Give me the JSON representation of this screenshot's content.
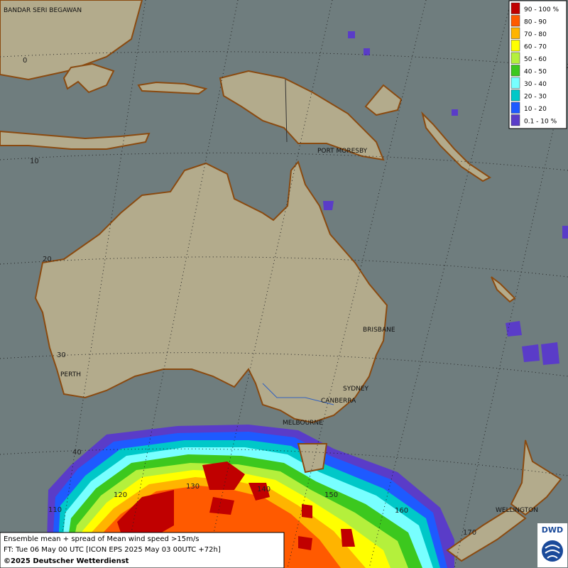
{
  "map": {
    "cities": [
      "BANDAR SERI BEGAWAN",
      "PORT MORESBY",
      "BRISBANE",
      "PERTH",
      "SYDNEY",
      "CANBERRA",
      "MELBOURNE",
      "WELLINGTON"
    ],
    "latitude_labels": [
      "0",
      "10",
      "20",
      "30",
      "40"
    ],
    "longitude_labels": [
      "110",
      "120",
      "130",
      "140",
      "150",
      "160",
      "170"
    ]
  },
  "legend": {
    "items": [
      {
        "label": "90 - 100 %",
        "color": "#c00000"
      },
      {
        "label": "80 - 90",
        "color": "#ff5a00"
      },
      {
        "label": "70 - 80",
        "color": "#ffb400"
      },
      {
        "label": "60 - 70",
        "color": "#ffff00"
      },
      {
        "label": "50 - 60",
        "color": "#b4f03c"
      },
      {
        "label": "40 - 50",
        "color": "#3cc81e"
      },
      {
        "label": "30 - 40",
        "color": "#78ffff"
      },
      {
        "label": "20 - 30",
        "color": "#00c8c8"
      },
      {
        "label": "10 - 20",
        "color": "#1e5aff"
      },
      {
        "label": "0.1 - 10 %",
        "color": "#5a3cc8"
      }
    ]
  },
  "info": {
    "lines": [
      "Ensemble mean + spread of Mean wind speed >15m/s",
      "FT: Tue 06 May 00 UTC [ICON EPS 2025 May 03 00UTC +72h]",
      "©2025 Deutscher Wetterdienst"
    ]
  },
  "logo": {
    "text": "DWD"
  }
}
